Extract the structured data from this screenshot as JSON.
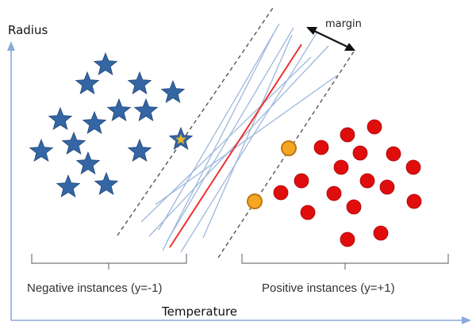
{
  "axes": {
    "y_label": "Radius",
    "x_label": "Temperature",
    "color": "#8aaad8"
  },
  "margin_label": "margin",
  "groups": {
    "negative_label": "Negative instances (y=-1)",
    "positive_label": "Positive instances (y=+1)"
  },
  "colors": {
    "star": "#3465a4",
    "star_stroke": "#24497a",
    "support_star": "#e8b820",
    "dot": "#e00d0d",
    "dot_stroke": "#a80808",
    "support_dot": "#f5a623",
    "support_dot_stroke": "#c07810",
    "candidate_line": "#9eb8dc",
    "best_line": "#ee3030",
    "margin_line": "#555555",
    "bracket": "#777777"
  }
}
